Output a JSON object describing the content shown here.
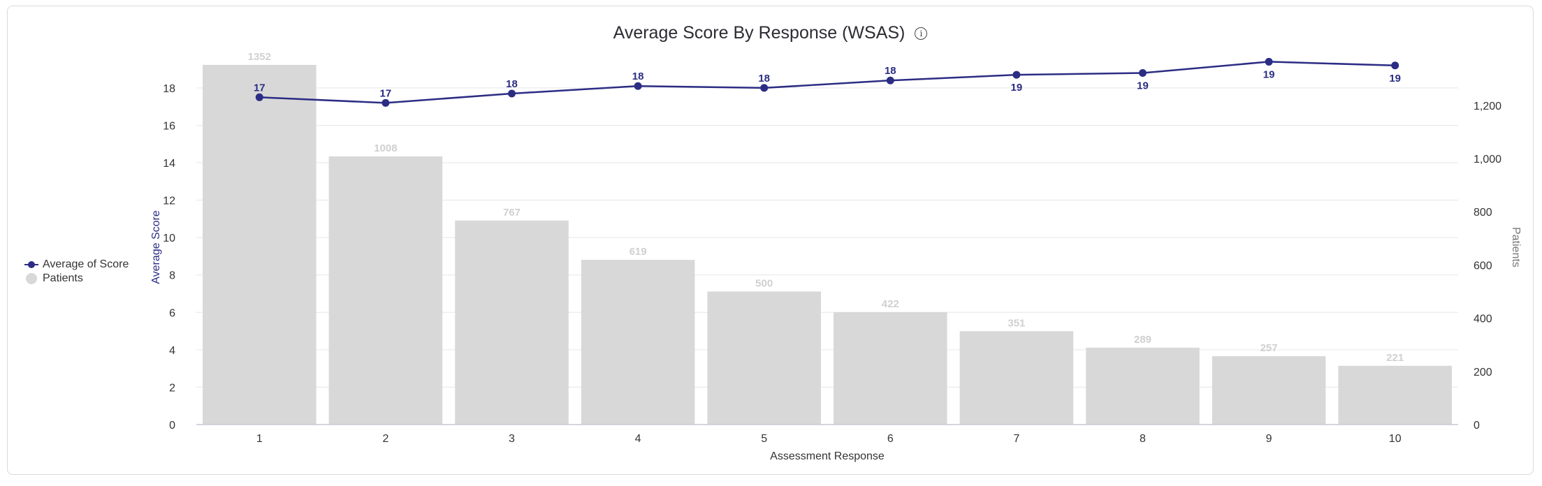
{
  "chart_data": {
    "type": "bar",
    "title": "Average Score By Response (WSAS)",
    "xlabel": "Assessment Response",
    "ylabel_left": "Average Score",
    "ylabel_right": "Patients",
    "categories": [
      "1",
      "2",
      "3",
      "4",
      "5",
      "6",
      "7",
      "8",
      "9",
      "10"
    ],
    "y_left_ticks": [
      "0",
      "2",
      "4",
      "6",
      "8",
      "10",
      "12",
      "14",
      "16",
      "18"
    ],
    "y_right_ticks": [
      "0",
      "200",
      "400",
      "600",
      "800",
      "1,000",
      "1,200"
    ],
    "ylim_left": [
      0,
      20.2
    ],
    "ylim_right": [
      0,
      1420
    ],
    "series": [
      {
        "name": "Patients",
        "type": "bar",
        "axis": "right",
        "color": "#d8d8d8",
        "values": [
          1352,
          1008,
          767,
          619,
          500,
          422,
          351,
          289,
          257,
          221
        ],
        "labels": [
          "1352",
          "1008",
          "767",
          "619",
          "500",
          "422",
          "351",
          "289",
          "257",
          "221"
        ]
      },
      {
        "name": "Average of Score",
        "type": "line",
        "axis": "left",
        "color": "#2b2d84",
        "values": [
          17.5,
          17.2,
          17.7,
          18.1,
          18.0,
          18.4,
          18.7,
          18.8,
          19.4,
          19.2
        ],
        "labels": [
          "17",
          "17",
          "18",
          "18",
          "18",
          "18",
          "19",
          "19",
          "19",
          "19"
        ],
        "label_position": [
          "above",
          "above",
          "above",
          "above",
          "above",
          "above",
          "below",
          "below",
          "below",
          "below"
        ]
      }
    ],
    "legend_position": "left",
    "grid": true
  },
  "legend": {
    "items": [
      "Average of Score",
      "Patients"
    ]
  },
  "info_icon": "info-icon"
}
